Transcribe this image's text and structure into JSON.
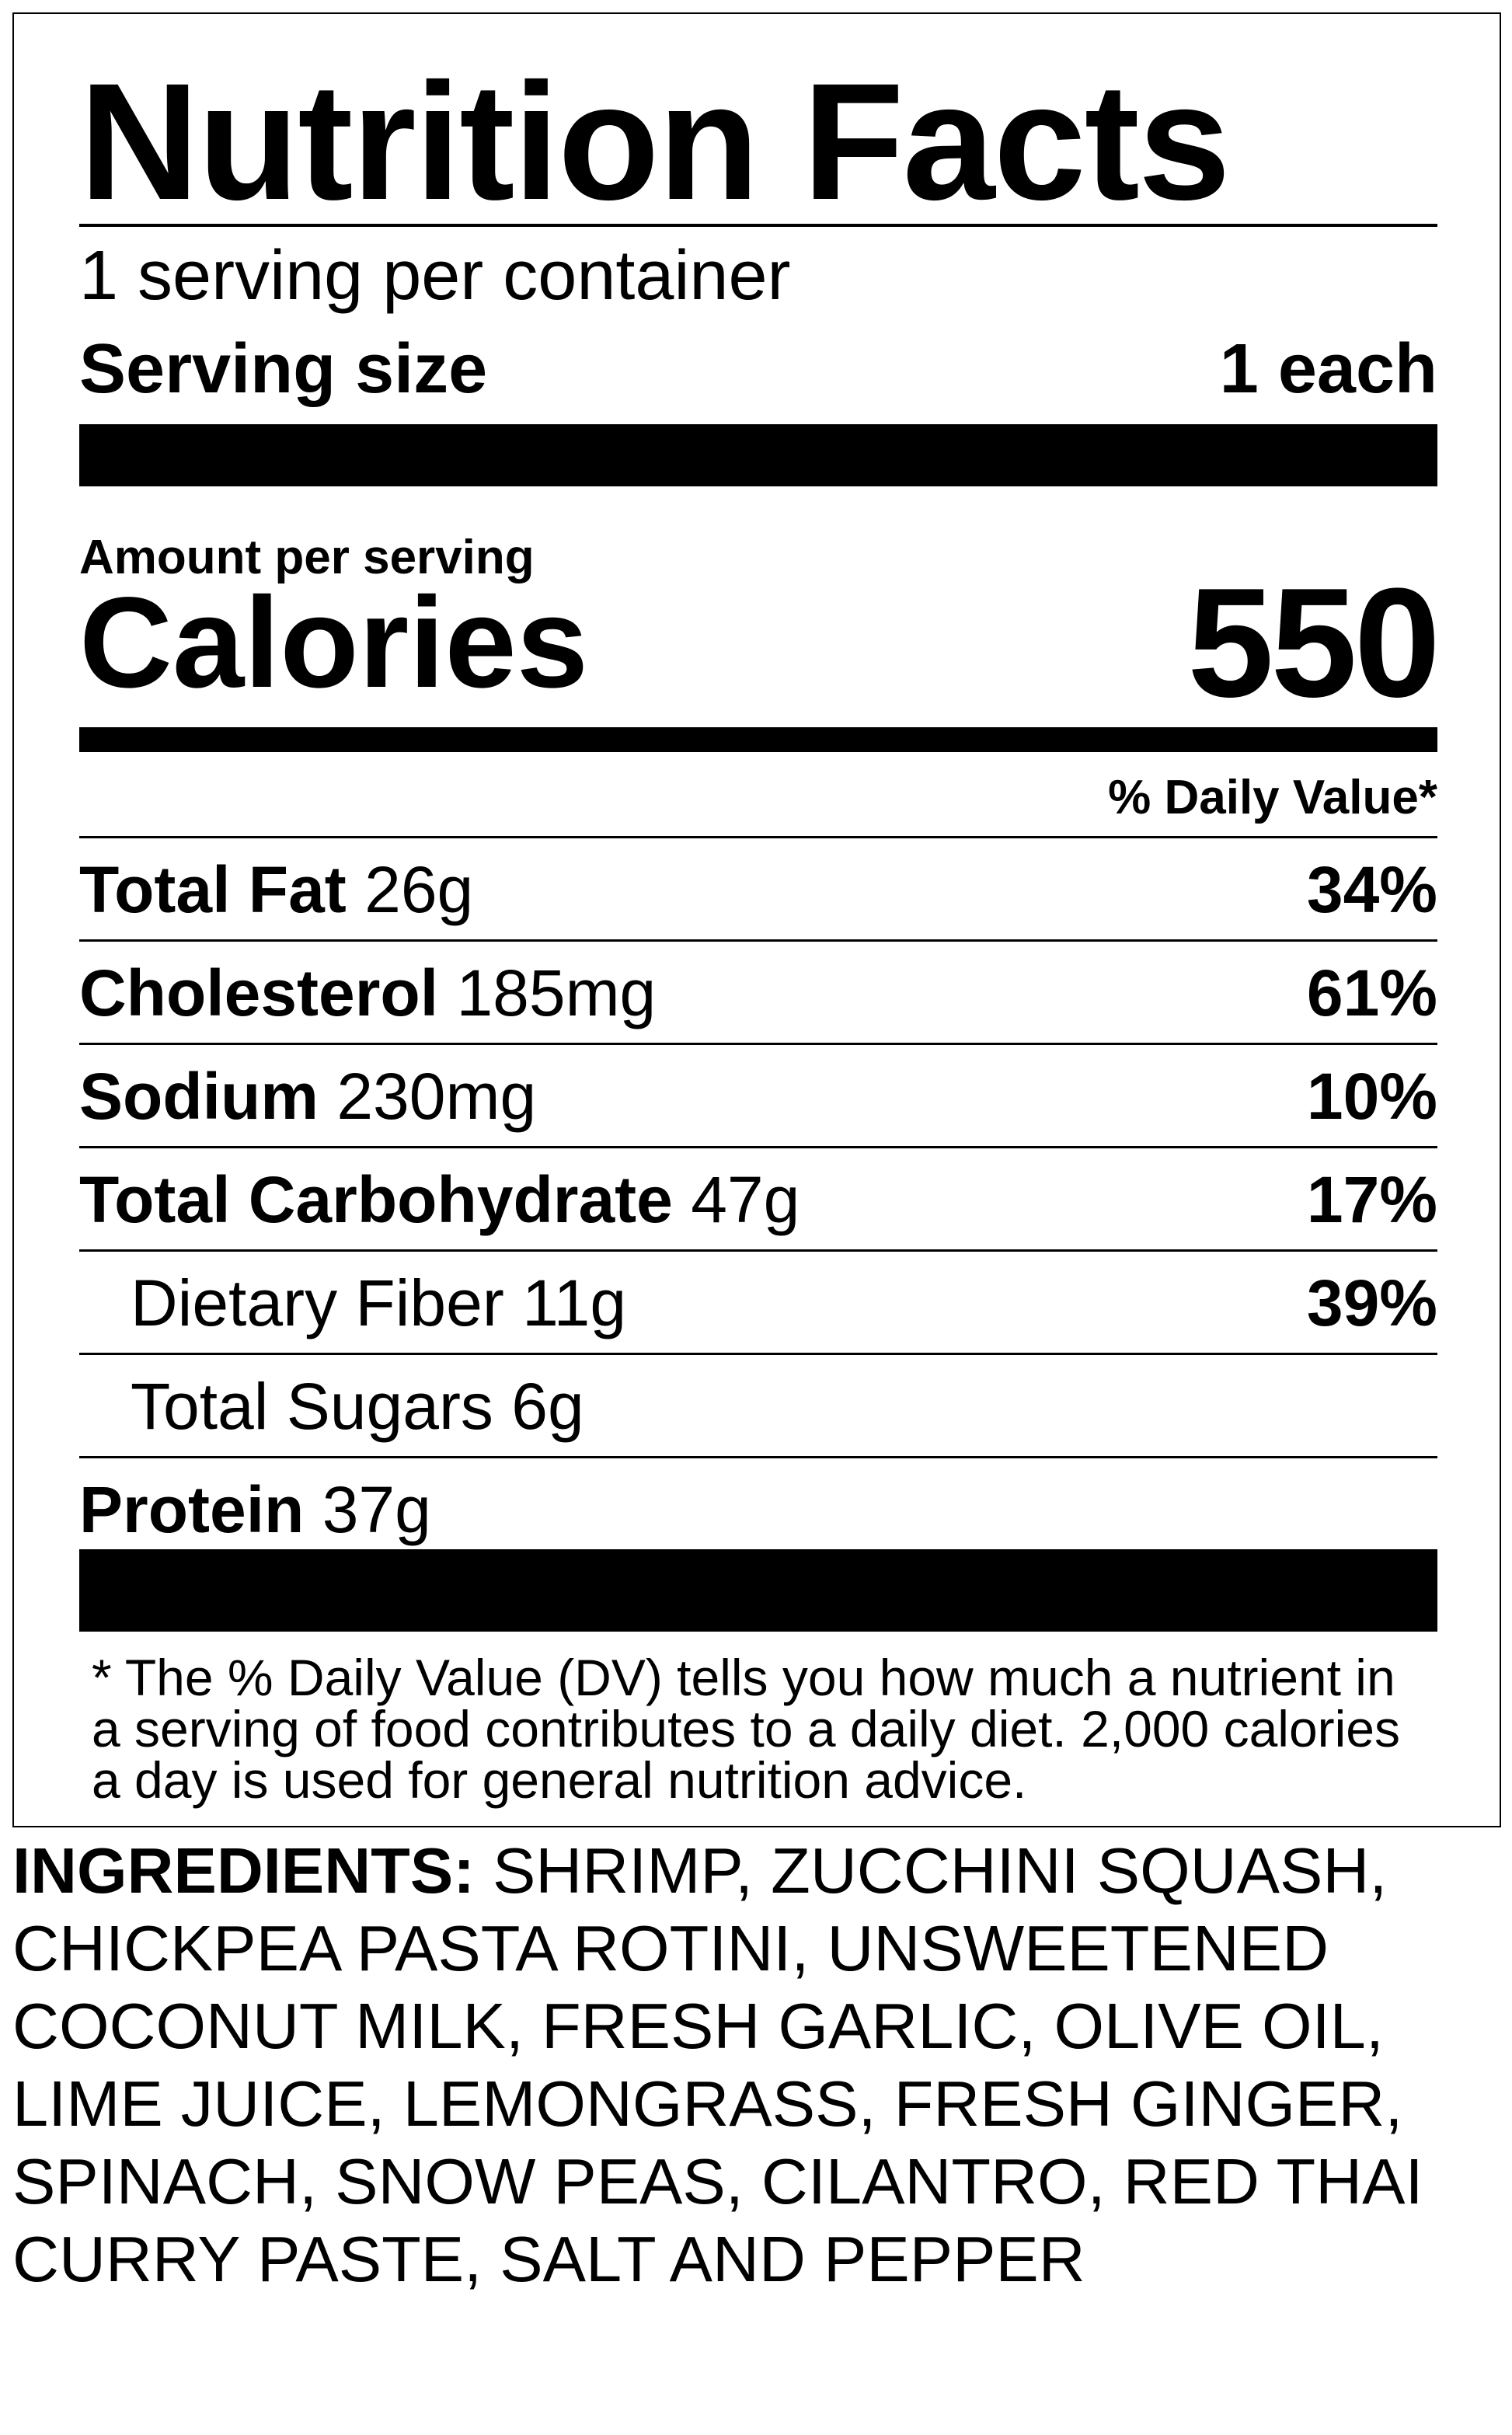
{
  "title": "Nutrition Facts",
  "servings_per_container": "1 serving per container",
  "serving_size": {
    "label": "Serving size",
    "value": "1 each"
  },
  "amount_per_serving": "Amount per serving",
  "calories": {
    "label": "Calories",
    "value": "550"
  },
  "daily_value_header": "% Daily Value*",
  "nutrients": [
    {
      "name": "Total Fat",
      "amount": "26g",
      "dv": "34%",
      "bold": true
    },
    {
      "name": "Cholesterol",
      "amount": "185mg",
      "dv": "61%",
      "bold": true
    },
    {
      "name": "Sodium",
      "amount": "230mg",
      "dv": "10%",
      "bold": true
    },
    {
      "name": "Total Carbohydrate",
      "amount": "47g",
      "dv": "17%",
      "bold": true
    },
    {
      "name": "Dietary Fiber",
      "amount": "11g",
      "dv": "39%",
      "bold": false
    },
    {
      "name": "Total Sugars",
      "amount": "6g",
      "dv": "",
      "bold": false
    },
    {
      "name": "Protein",
      "amount": "37g",
      "dv": "",
      "bold": true
    }
  ],
  "footnote": "* The % Daily Value (DV) tells you how much a nutrient in a serving of food contributes to a daily diet. 2,000 calories a day is used for general nutrition advice.",
  "ingredients": {
    "label": "INGREDIENTS:",
    "text": "SHRIMP, ZUCCHINI SQUASH, CHICKPEA PASTA ROTINI, UNSWEETENED COCONUT MILK, FRESH GARLIC, OLIVE OIL, LIME JUICE, LEMONGRASS, FRESH GINGER, SPINACH, SNOW PEAS, CILANTRO, RED THAI CURRY PASTE, SALT AND PEPPER"
  }
}
